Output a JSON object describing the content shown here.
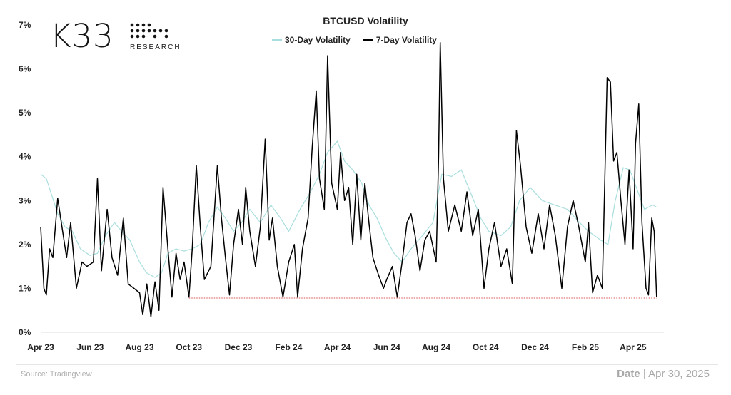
{
  "brand": {
    "wordmark": "K33",
    "subtitle": "RESEARCH"
  },
  "footer": {
    "source": "Source:  Tradingview",
    "date_label": "Date",
    "date_separator": " | ",
    "date_value": "Apr 30, 2025"
  },
  "colors": {
    "series_30d": "#a9dede",
    "series_7d": "#000000",
    "reference_line": "#d9534f",
    "axis": "#dddddd",
    "background": "#ffffff"
  },
  "chart_data": {
    "type": "line",
    "title": "BTCUSD Volatility",
    "xlabel": "",
    "ylabel": "",
    "x_start": "2023-04-01",
    "x_end": "2025-05-09",
    "x_ticks": [
      "Apr 23",
      "Jun 23",
      "Aug 23",
      "Oct 23",
      "Dec 23",
      "Feb 24",
      "Apr 24",
      "Jun 24",
      "Aug 24",
      "Oct 24",
      "Dec 24",
      "Feb 25",
      "Apr 25"
    ],
    "x_tick_dates": [
      "2023-04-01",
      "2023-06-01",
      "2023-08-01",
      "2023-10-01",
      "2023-12-01",
      "2024-02-01",
      "2024-04-01",
      "2024-06-01",
      "2024-08-01",
      "2024-10-01",
      "2024-12-01",
      "2025-02-01",
      "2025-04-01"
    ],
    "y_ticks": [
      "0%",
      "1%",
      "2%",
      "3%",
      "4%",
      "5%",
      "6%",
      "7%"
    ],
    "ylim": [
      0,
      7
    ],
    "grid": false,
    "legend_position": "top-center",
    "reference_line": {
      "value": 0.78,
      "from": "2023-10-01",
      "to": "2025-04-30",
      "style": "dotted"
    },
    "series": [
      {
        "name": "30-Day Volatility",
        "color": "#a9dede",
        "points": [
          [
            "2023-04-01",
            3.6
          ],
          [
            "2023-04-08",
            3.5
          ],
          [
            "2023-04-15",
            3.1
          ],
          [
            "2023-04-22",
            2.7
          ],
          [
            "2023-05-01",
            2.4
          ],
          [
            "2023-05-10",
            2.3
          ],
          [
            "2023-05-20",
            1.9
          ],
          [
            "2023-06-01",
            1.75
          ],
          [
            "2023-06-10",
            1.8
          ],
          [
            "2023-06-20",
            2.2
          ],
          [
            "2023-07-01",
            2.5
          ],
          [
            "2023-07-10",
            2.3
          ],
          [
            "2023-07-20",
            2.1
          ],
          [
            "2023-08-01",
            1.6
          ],
          [
            "2023-08-10",
            1.35
          ],
          [
            "2023-08-20",
            1.25
          ],
          [
            "2023-08-28",
            1.35
          ],
          [
            "2023-09-05",
            1.8
          ],
          [
            "2023-09-15",
            1.9
          ],
          [
            "2023-09-25",
            1.85
          ],
          [
            "2023-10-05",
            1.9
          ],
          [
            "2023-10-15",
            2.0
          ],
          [
            "2023-10-25",
            2.5
          ],
          [
            "2023-11-05",
            2.85
          ],
          [
            "2023-11-15",
            2.6
          ],
          [
            "2023-11-25",
            2.3
          ],
          [
            "2023-12-05",
            2.5
          ],
          [
            "2023-12-15",
            2.8
          ],
          [
            "2023-12-28",
            2.5
          ],
          [
            "2024-01-10",
            2.9
          ],
          [
            "2024-01-22",
            2.6
          ],
          [
            "2024-02-01",
            2.3
          ],
          [
            "2024-02-15",
            2.8
          ],
          [
            "2024-02-28",
            3.2
          ],
          [
            "2024-03-10",
            3.6
          ],
          [
            "2024-03-20",
            4.1
          ],
          [
            "2024-04-01",
            4.35
          ],
          [
            "2024-04-10",
            3.9
          ],
          [
            "2024-04-20",
            3.7
          ],
          [
            "2024-05-01",
            3.4
          ],
          [
            "2024-05-10",
            2.9
          ],
          [
            "2024-05-20",
            2.6
          ],
          [
            "2024-06-01",
            2.1
          ],
          [
            "2024-06-10",
            1.8
          ],
          [
            "2024-06-20",
            1.6
          ],
          [
            "2024-07-01",
            1.9
          ],
          [
            "2024-07-15",
            2.2
          ],
          [
            "2024-07-28",
            2.5
          ],
          [
            "2024-08-08",
            3.6
          ],
          [
            "2024-08-20",
            3.55
          ],
          [
            "2024-09-01",
            3.7
          ],
          [
            "2024-09-12",
            3.2
          ],
          [
            "2024-09-25",
            2.6
          ],
          [
            "2024-10-05",
            2.3
          ],
          [
            "2024-10-20",
            2.2
          ],
          [
            "2024-11-01",
            2.4
          ],
          [
            "2024-11-12",
            3.0
          ],
          [
            "2024-11-25",
            3.3
          ],
          [
            "2024-12-10",
            3.0
          ],
          [
            "2024-12-25",
            2.9
          ],
          [
            "2025-01-10",
            2.8
          ],
          [
            "2025-01-25",
            2.5
          ],
          [
            "2025-02-05",
            2.3
          ],
          [
            "2025-02-20",
            2.1
          ],
          [
            "2025-03-01",
            2.0
          ],
          [
            "2025-03-10",
            3.0
          ],
          [
            "2025-03-20",
            3.75
          ],
          [
            "2025-03-28",
            3.7
          ],
          [
            "2025-04-05",
            3.3
          ],
          [
            "2025-04-15",
            2.8
          ],
          [
            "2025-04-25",
            2.9
          ],
          [
            "2025-04-30",
            2.85
          ]
        ]
      },
      {
        "name": "7-Day Volatility",
        "color": "#000000",
        "points": [
          [
            "2023-04-01",
            2.4
          ],
          [
            "2023-04-05",
            1.0
          ],
          [
            "2023-04-08",
            0.85
          ],
          [
            "2023-04-12",
            1.9
          ],
          [
            "2023-04-16",
            1.7
          ],
          [
            "2023-04-22",
            3.05
          ],
          [
            "2023-04-28",
            2.3
          ],
          [
            "2023-05-03",
            1.7
          ],
          [
            "2023-05-08",
            2.5
          ],
          [
            "2023-05-15",
            1.0
          ],
          [
            "2023-05-22",
            1.6
          ],
          [
            "2023-05-28",
            1.5
          ],
          [
            "2023-06-05",
            1.6
          ],
          [
            "2023-06-10",
            3.5
          ],
          [
            "2023-06-15",
            1.4
          ],
          [
            "2023-06-22",
            2.8
          ],
          [
            "2023-06-28",
            1.7
          ],
          [
            "2023-07-05",
            1.3
          ],
          [
            "2023-07-12",
            2.6
          ],
          [
            "2023-07-18",
            1.1
          ],
          [
            "2023-07-25",
            1.0
          ],
          [
            "2023-08-01",
            0.9
          ],
          [
            "2023-08-05",
            0.4
          ],
          [
            "2023-08-10",
            1.1
          ],
          [
            "2023-08-15",
            0.35
          ],
          [
            "2023-08-20",
            1.15
          ],
          [
            "2023-08-25",
            0.5
          ],
          [
            "2023-08-30",
            3.3
          ],
          [
            "2023-09-05",
            1.9
          ],
          [
            "2023-09-10",
            0.8
          ],
          [
            "2023-09-15",
            1.8
          ],
          [
            "2023-09-20",
            1.2
          ],
          [
            "2023-09-25",
            1.6
          ],
          [
            "2023-10-01",
            0.8
          ],
          [
            "2023-10-05",
            1.9
          ],
          [
            "2023-10-10",
            3.8
          ],
          [
            "2023-10-15",
            2.4
          ],
          [
            "2023-10-20",
            1.2
          ],
          [
            "2023-10-28",
            1.5
          ],
          [
            "2023-11-05",
            3.8
          ],
          [
            "2023-11-10",
            2.6
          ],
          [
            "2023-11-15",
            1.7
          ],
          [
            "2023-11-20",
            0.85
          ],
          [
            "2023-11-25",
            2.0
          ],
          [
            "2023-12-01",
            2.8
          ],
          [
            "2023-12-06",
            2.0
          ],
          [
            "2023-12-10",
            3.3
          ],
          [
            "2023-12-15",
            2.3
          ],
          [
            "2023-12-22",
            1.5
          ],
          [
            "2023-12-28",
            2.4
          ],
          [
            "2024-01-03",
            4.4
          ],
          [
            "2024-01-08",
            2.1
          ],
          [
            "2024-01-12",
            2.6
          ],
          [
            "2024-01-18",
            1.5
          ],
          [
            "2024-01-25",
            0.8
          ],
          [
            "2024-02-01",
            1.6
          ],
          [
            "2024-02-08",
            2.0
          ],
          [
            "2024-02-12",
            0.8
          ],
          [
            "2024-02-18",
            1.9
          ],
          [
            "2024-02-25",
            2.6
          ],
          [
            "2024-03-01",
            4.2
          ],
          [
            "2024-03-06",
            5.5
          ],
          [
            "2024-03-10",
            3.5
          ],
          [
            "2024-03-16",
            2.8
          ],
          [
            "2024-03-20",
            6.3
          ],
          [
            "2024-03-25",
            3.4
          ],
          [
            "2024-04-01",
            2.8
          ],
          [
            "2024-04-05",
            4.1
          ],
          [
            "2024-04-10",
            3.0
          ],
          [
            "2024-04-15",
            3.3
          ],
          [
            "2024-04-20",
            2.0
          ],
          [
            "2024-04-25",
            3.6
          ],
          [
            "2024-04-30",
            2.1
          ],
          [
            "2024-05-05",
            3.4
          ],
          [
            "2024-05-10",
            2.5
          ],
          [
            "2024-05-15",
            1.7
          ],
          [
            "2024-05-22",
            1.3
          ],
          [
            "2024-05-28",
            1.0
          ],
          [
            "2024-06-01",
            1.2
          ],
          [
            "2024-06-08",
            1.5
          ],
          [
            "2024-06-14",
            0.8
          ],
          [
            "2024-06-20",
            1.6
          ],
          [
            "2024-06-26",
            2.5
          ],
          [
            "2024-07-01",
            2.7
          ],
          [
            "2024-07-06",
            2.2
          ],
          [
            "2024-07-12",
            1.4
          ],
          [
            "2024-07-18",
            2.1
          ],
          [
            "2024-07-24",
            2.3
          ],
          [
            "2024-08-01",
            1.6
          ],
          [
            "2024-08-04",
            4.0
          ],
          [
            "2024-08-06",
            6.6
          ],
          [
            "2024-08-10",
            3.5
          ],
          [
            "2024-08-16",
            2.3
          ],
          [
            "2024-08-24",
            2.9
          ],
          [
            "2024-09-01",
            2.3
          ],
          [
            "2024-09-08",
            3.2
          ],
          [
            "2024-09-15",
            2.2
          ],
          [
            "2024-09-22",
            2.8
          ],
          [
            "2024-09-29",
            1.0
          ],
          [
            "2024-10-05",
            1.9
          ],
          [
            "2024-10-12",
            2.5
          ],
          [
            "2024-10-20",
            1.5
          ],
          [
            "2024-10-27",
            1.9
          ],
          [
            "2024-11-03",
            1.1
          ],
          [
            "2024-11-08",
            4.6
          ],
          [
            "2024-11-13",
            3.8
          ],
          [
            "2024-11-20",
            2.4
          ],
          [
            "2024-11-27",
            1.8
          ],
          [
            "2024-12-05",
            2.7
          ],
          [
            "2024-12-12",
            1.9
          ],
          [
            "2024-12-19",
            2.9
          ],
          [
            "2024-12-26",
            2.2
          ],
          [
            "2025-01-03",
            1.0
          ],
          [
            "2025-01-10",
            2.4
          ],
          [
            "2025-01-17",
            3.0
          ],
          [
            "2025-01-24",
            2.4
          ],
          [
            "2025-02-01",
            1.6
          ],
          [
            "2025-02-05",
            2.5
          ],
          [
            "2025-02-10",
            0.9
          ],
          [
            "2025-02-16",
            1.3
          ],
          [
            "2025-02-22",
            1.0
          ],
          [
            "2025-02-28",
            5.8
          ],
          [
            "2025-03-04",
            5.7
          ],
          [
            "2025-03-08",
            3.9
          ],
          [
            "2025-03-12",
            4.1
          ],
          [
            "2025-03-17",
            3.0
          ],
          [
            "2025-03-22",
            2.0
          ],
          [
            "2025-03-27",
            3.7
          ],
          [
            "2025-04-01",
            1.9
          ],
          [
            "2025-04-04",
            4.3
          ],
          [
            "2025-04-08",
            5.2
          ],
          [
            "2025-04-12",
            2.5
          ],
          [
            "2025-04-17",
            1.0
          ],
          [
            "2025-04-20",
            0.85
          ],
          [
            "2025-04-24",
            2.6
          ],
          [
            "2025-04-27",
            2.3
          ],
          [
            "2025-04-30",
            0.8
          ]
        ]
      }
    ]
  }
}
